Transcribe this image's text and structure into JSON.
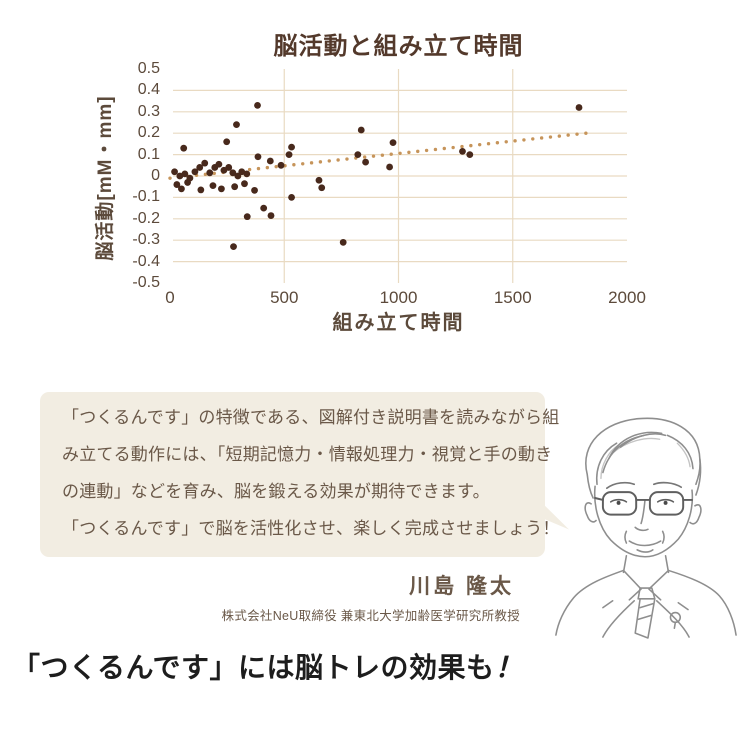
{
  "chart_data": {
    "type": "scatter",
    "title": "脳活動と組み立て時間",
    "xlabel": "組み立て時間",
    "ylabel": "脳活動[mM・mm]",
    "xlim": [
      0,
      2000
    ],
    "ylim": [
      -0.5,
      0.5
    ],
    "xticks": [
      "0",
      "500",
      "1000",
      "1500",
      "2000"
    ],
    "yticks": [
      "0.5",
      "0.4",
      "0.3",
      "0.2",
      "0.1",
      "0",
      "-0.1",
      "-0.2",
      "-0.3",
      "-0.4",
      "-0.5"
    ],
    "grid": true,
    "legend": false,
    "points": [
      [
        20,
        0.02
      ],
      [
        30,
        -0.04
      ],
      [
        43,
        0
      ],
      [
        50,
        -0.06
      ],
      [
        60,
        0.13
      ],
      [
        65,
        0.01
      ],
      [
        77,
        -0.03
      ],
      [
        87,
        -0.01
      ],
      [
        109,
        0.02
      ],
      [
        130,
        0.04
      ],
      [
        135,
        -0.065
      ],
      [
        152,
        0.06
      ],
      [
        174,
        0.015
      ],
      [
        188,
        -0.045
      ],
      [
        196,
        0.04
      ],
      [
        214,
        0.055
      ],
      [
        225,
        -0.06
      ],
      [
        236,
        0.027
      ],
      [
        248,
        0.16
      ],
      [
        257,
        0.04
      ],
      [
        275,
        0.015
      ],
      [
        278,
        -0.33
      ],
      [
        283,
        -0.05
      ],
      [
        291,
        0.24
      ],
      [
        297,
        0
      ],
      [
        314,
        0.02
      ],
      [
        326,
        -0.036
      ],
      [
        336,
        0.01
      ],
      [
        338,
        -0.19
      ],
      [
        370,
        -0.067
      ],
      [
        383,
        0.33
      ],
      [
        385,
        0.09
      ],
      [
        410,
        -0.15
      ],
      [
        439,
        0.07
      ],
      [
        442,
        -0.185
      ],
      [
        486,
        0.05
      ],
      [
        521,
        0.1
      ],
      [
        532,
        0.135
      ],
      [
        532,
        -0.1
      ],
      [
        652,
        -0.02
      ],
      [
        664,
        -0.055
      ],
      [
        758,
        -0.31
      ],
      [
        822,
        0.1
      ],
      [
        837,
        0.215
      ],
      [
        856,
        0.065
      ],
      [
        961,
        0.042
      ],
      [
        976,
        0.156
      ],
      [
        1280,
        0.115
      ],
      [
        1312,
        0.1
      ],
      [
        1790,
        0.32
      ]
    ],
    "trend": {
      "style": "dotted",
      "x": [
        0,
        1820
      ],
      "y": [
        -0.01,
        0.2
      ]
    },
    "colors": {
      "point": "#48291c",
      "trend": "#c6945a",
      "grid": "#e9dac2",
      "axis_text": "#5c4a3b",
      "title_text": "#53392b"
    }
  },
  "speech": {
    "lines": [
      "「つくるんです」の特徴である、図解付き説明書を読みながら組",
      "み立てる動作には、「短期記憶力・情報処理力・視覚と手の動き",
      "の連動」などを育み、脳を鍛える効果が期待できます。",
      "「つくるんです」で脳を活性化させ、楽しく完成させましょう！"
    ]
  },
  "attribution": {
    "name": "川島 隆太",
    "role": "株式会社NeU取締役 兼東北大学加齢医学研究所教授"
  },
  "headline": {
    "text": "「つくるんです」には脳トレの効果も",
    "mark": "！"
  }
}
